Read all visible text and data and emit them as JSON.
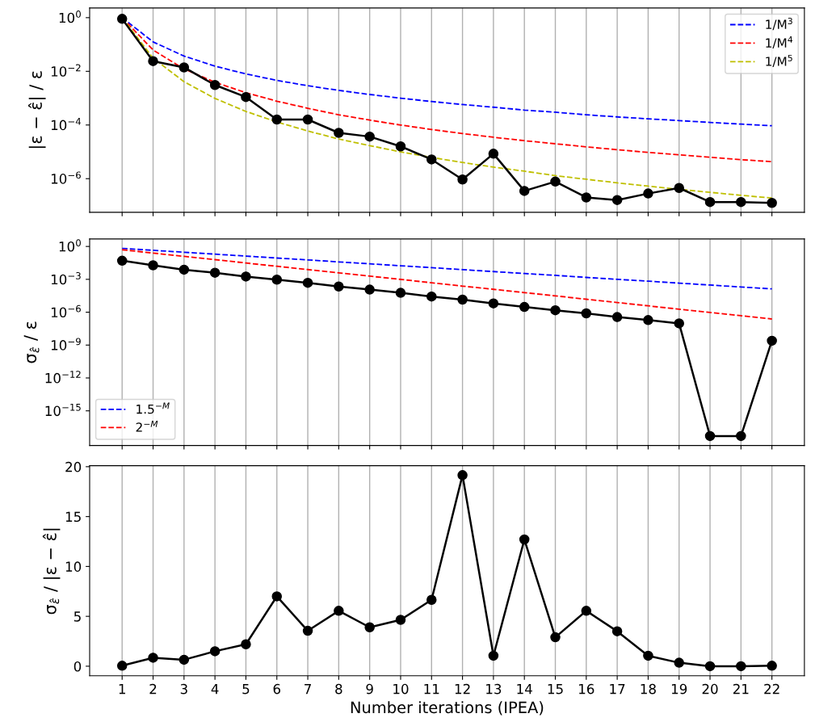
{
  "chart_data": [
    {
      "type": "line",
      "ylabel": "|ε − ε̂| / ε",
      "x": [
        1,
        2,
        3,
        4,
        5,
        6,
        7,
        8,
        9,
        10,
        11,
        12,
        13,
        14,
        15,
        16,
        17,
        18,
        19,
        20,
        21,
        22
      ],
      "log": "y",
      "xlim": [
        -0.05,
        23.05
      ],
      "xticks": [
        1,
        2,
        3,
        4,
        5,
        6,
        7,
        8,
        9,
        10,
        11,
        12,
        13,
        14,
        15,
        16,
        17,
        18,
        19,
        20,
        21,
        22
      ],
      "ylim": [
        5.6e-08,
        2.3
      ],
      "yticks": [
        {
          "value": 1,
          "label": "10$^{0}$"
        },
        {
          "value": 0.01,
          "label": "10$^{−2}$"
        },
        {
          "value": 0.0001,
          "label": "10$^{−4}$"
        },
        {
          "value": 1e-06,
          "label": "10$^{−6}$"
        }
      ],
      "grid": "x",
      "tick_labels": "y",
      "legend": "top right",
      "series": [
        {
          "name": "1/M$^{3}$",
          "color": "#0000ff",
          "line_style": "dashed",
          "marker": "none",
          "values": [
            1,
            0.125,
            0.037,
            0.0156,
            0.008,
            0.0046,
            0.0029,
            0.00195,
            0.00137,
            0.001,
            0.00075,
            0.00058,
            0.00046,
            0.00036,
            0.0003,
            0.00024,
            0.0002,
            0.00017,
            0.000146,
            0.000125,
            0.000108,
            9.4e-05
          ]
        },
        {
          "name": "1/M$^{4}$",
          "color": "#ff0000",
          "line_style": "dashed",
          "marker": "none",
          "values": [
            1,
            0.0625,
            0.0123,
            0.0039,
            0.0016,
            0.00077,
            0.00042,
            0.00024,
            0.000152,
            0.0001,
            6.8e-05,
            4.8e-05,
            3.5e-05,
            2.6e-05,
            2e-05,
            1.53e-05,
            1.2e-05,
            9.5e-06,
            7.7e-06,
            6.3e-06,
            5.1e-06,
            4.3e-06
          ]
        },
        {
          "name": "1/M$^{5}$",
          "color": "#bfbf00",
          "line_style": "dashed",
          "marker": "none",
          "values": [
            1,
            0.031,
            0.0041,
            0.00098,
            0.00032,
            0.00013,
            6e-05,
            3e-05,
            1.7e-05,
            1e-05,
            6.2e-06,
            4e-06,
            2.7e-06,
            1.9e-06,
            1.3e-06,
            9.5e-07,
            7e-07,
            5.3e-07,
            4e-07,
            3.1e-07,
            2.4e-07,
            1.9e-07
          ]
        },
        {
          "color": "#000000",
          "line_style": "solid",
          "marker": "circle",
          "values": [
            0.9,
            0.024,
            0.014,
            0.0031,
            0.0011,
            0.00016,
            0.00016,
            5.1e-05,
            3.7e-05,
            1.6e-05,
            5.2e-06,
            9.3e-07,
            8.5e-06,
            3.5e-07,
            7.8e-07,
            2e-07,
            1.6e-07,
            2.8e-07,
            4.5e-07,
            1.35e-07,
            1.35e-07,
            1.25e-07
          ]
        }
      ]
    },
    {
      "type": "line",
      "ylabel": "σ$_{ε̂}$ / ε",
      "x": [
        1,
        2,
        3,
        4,
        5,
        6,
        7,
        8,
        9,
        10,
        11,
        12,
        13,
        14,
        15,
        16,
        17,
        18,
        19,
        20,
        21,
        22
      ],
      "log": "y",
      "xlim": [
        -0.05,
        23.05
      ],
      "xticks": [
        1,
        2,
        3,
        4,
        5,
        6,
        7,
        8,
        9,
        10,
        11,
        12,
        13,
        14,
        15,
        16,
        17,
        18,
        19,
        20,
        21,
        22
      ],
      "ylim": [
        6.9e-19,
        4.8
      ],
      "yticks": [
        {
          "value": 1,
          "label": "10$^{0}$"
        },
        {
          "value": 0.001,
          "label": "10$^{−3}$"
        },
        {
          "value": 1e-06,
          "label": "10$^{−6}$"
        },
        {
          "value": 1e-09,
          "label": "10$^{−9}$"
        },
        {
          "value": 1e-12,
          "label": "10$^{−12}$"
        },
        {
          "value": 1e-15,
          "label": "10$^{−15}$"
        }
      ],
      "grid": "x",
      "tick_labels": "y",
      "legend": "bottom left",
      "series": [
        {
          "name": "1.5$^{−M}$",
          "color": "#0000ff",
          "line_style": "dashed",
          "marker": "none",
          "values": [
            0.667,
            0.444,
            0.296,
            0.198,
            0.132,
            0.088,
            0.059,
            0.039,
            0.026,
            0.0173,
            0.0116,
            0.0077,
            0.0051,
            0.0034,
            0.0023,
            0.0015,
            0.001,
            0.00068,
            0.00045,
            0.0003,
            0.0002,
            0.000134
          ]
        },
        {
          "name": "2$^{−M}$",
          "color": "#ff0000",
          "line_style": "dashed",
          "marker": "none",
          "values": [
            0.5,
            0.25,
            0.125,
            0.0625,
            0.031,
            0.0156,
            0.0078,
            0.0039,
            0.00195,
            0.00098,
            0.00049,
            0.00024,
            0.000122,
            6.1e-05,
            3.1e-05,
            1.53e-05,
            7.6e-06,
            3.8e-06,
            1.9e-06,
            9.5e-07,
            4.8e-07,
            2.4e-07
          ]
        },
        {
          "color": "#000000",
          "line_style": "solid",
          "marker": "circle",
          "values": [
            0.05,
            0.019,
            0.0076,
            0.004,
            0.0018,
            0.00094,
            0.00048,
            0.00022,
            0.000115,
            5.9e-05,
            2.7e-05,
            1.4e-05,
            6.4e-06,
            3e-06,
            1.5e-06,
            7.8e-07,
            3.6e-07,
            1.9e-07,
            9.5e-08,
            5e-18,
            5e-18,
            2.5e-09
          ]
        }
      ]
    },
    {
      "type": "line",
      "ylabel": "σ$_{ε̂}$ / |ε − ε̂|",
      "xlabel": "Number iterations (IPEA)",
      "x": [
        1,
        2,
        3,
        4,
        5,
        6,
        7,
        8,
        9,
        10,
        11,
        12,
        13,
        14,
        15,
        16,
        17,
        18,
        19,
        20,
        21,
        22
      ],
      "xlim": [
        -0.05,
        23.05
      ],
      "xticks": [
        1,
        2,
        3,
        4,
        5,
        6,
        7,
        8,
        9,
        10,
        11,
        12,
        13,
        14,
        15,
        16,
        17,
        18,
        19,
        20,
        21,
        22
      ],
      "ylim": [
        -0.96,
        20.1
      ],
      "yticks": [
        0,
        5,
        10,
        15,
        20
      ],
      "grid": "x",
      "series": [
        {
          "color": "#000000",
          "line_style": "solid",
          "marker": "circle",
          "values": [
            0.05,
            0.85,
            0.65,
            1.5,
            2.2,
            7.0,
            3.55,
            5.55,
            3.9,
            4.65,
            6.65,
            19.15,
            1.05,
            12.7,
            2.9,
            5.55,
            3.5,
            1.05,
            0.35,
            0.0,
            0.0,
            0.05
          ]
        }
      ]
    }
  ]
}
